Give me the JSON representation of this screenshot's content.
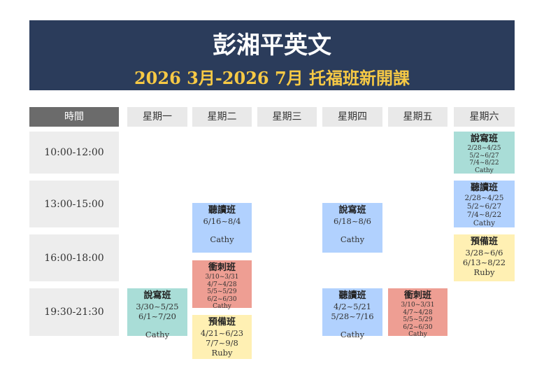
{
  "header": {
    "title": "彭湘平英文",
    "subtitle": "2026 3月-2026 7月 托福班新開課"
  },
  "columns": [
    "時間",
    "星期一",
    "星期二",
    "星期三",
    "星期四",
    "星期五",
    "星期六"
  ],
  "times": [
    "10:00-12:00",
    "13:00-15:00",
    "16:00-18:00",
    "19:30-21:30"
  ],
  "classes": [
    {
      "day": "星期一",
      "title": "說寫班",
      "lines": [
        "3/30~5/25",
        "6/1~7/20",
        "",
        "Cathy"
      ],
      "color": "#a9ddd7"
    },
    {
      "day": "星期二",
      "title": "聽讀班",
      "lines": [
        "6/16~8/4",
        "",
        "Cathy"
      ],
      "color": "#b1d1fe"
    },
    {
      "day": "星期二",
      "title": "衝刺班",
      "lines": [
        "3/10~3/31",
        "4/7~4/28",
        "5/5~5/29",
        "6/2~6/30",
        "Cathy"
      ],
      "color": "#ee9e93"
    },
    {
      "day": "星期二",
      "title": "預備班",
      "lines": [
        "4/21~6/23",
        "7/7~9/8",
        "Ruby"
      ],
      "color": "#fff0b3"
    },
    {
      "day": "星期四",
      "title": "說寫班",
      "lines": [
        "6/18~8/6",
        "",
        "Cathy"
      ],
      "color": "#b1d1fe"
    },
    {
      "day": "星期四",
      "title": "聽讀班",
      "lines": [
        "4/2~5/21",
        "5/28~7/16",
        "",
        "Cathy"
      ],
      "color": "#b1d1fe"
    },
    {
      "day": "星期五",
      "title": "衝刺班",
      "lines": [
        "3/10~3/31",
        "4/7~4/28",
        "5/5~5/29",
        "6/2~6/30",
        "Cathy"
      ],
      "color": "#ee9e93"
    },
    {
      "day": "星期六",
      "title": "說寫班",
      "lines": [
        "2/28~4/25",
        "5/2~6/27",
        "7/4~8/22",
        "Cathy"
      ],
      "color": "#a9ddd7"
    },
    {
      "day": "星期六",
      "title": "聽讀班",
      "lines": [
        "2/28~4/25",
        "5/2~6/27",
        "7/4~8/22",
        "Cathy"
      ],
      "color": "#b1d1fe"
    },
    {
      "day": "星期六",
      "title": "預備班",
      "lines": [
        "3/28~6/6",
        "6/13~8/22",
        "Ruby"
      ],
      "color": "#fff0b3"
    }
  ]
}
